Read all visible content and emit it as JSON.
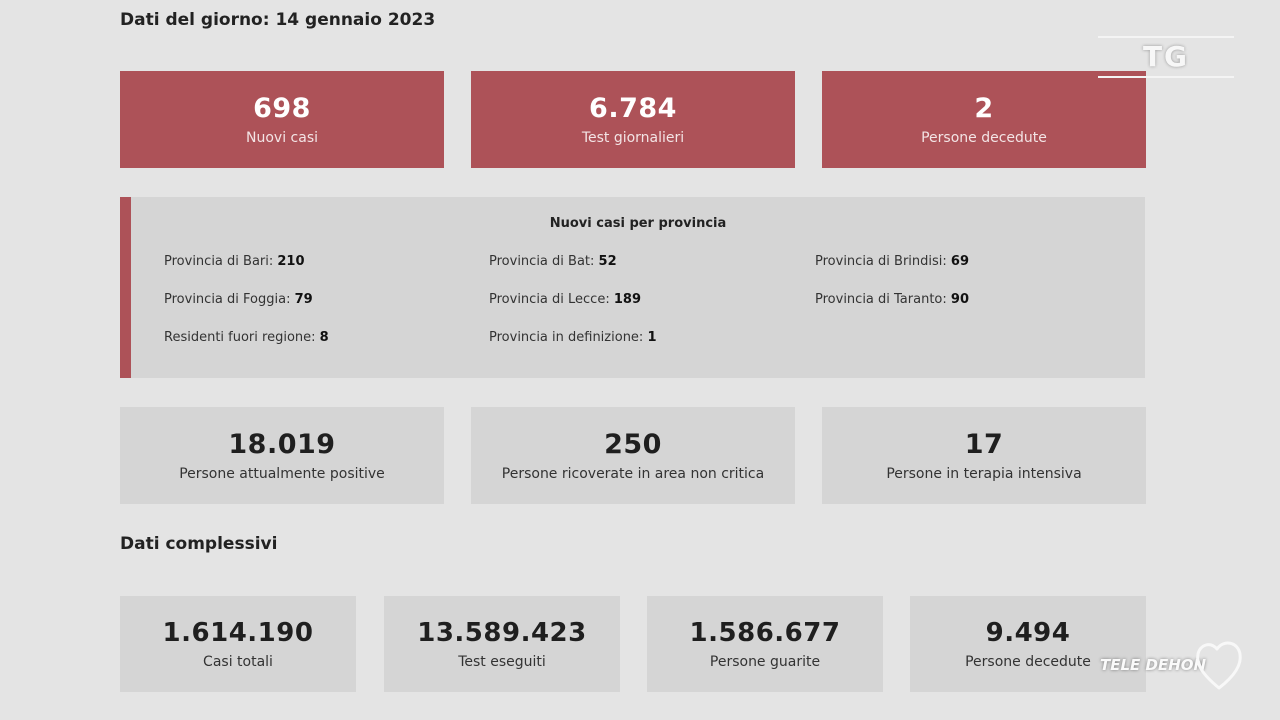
{
  "daily": {
    "heading": "Dati del giorno: 14 gennaio 2023",
    "cards": [
      {
        "value": "698",
        "label": "Nuovi casi"
      },
      {
        "value": "6.784",
        "label": "Test giornalieri"
      },
      {
        "value": "2",
        "label": "Persone decedute"
      }
    ]
  },
  "provinces": {
    "title": "Nuovi casi per provincia",
    "items": [
      {
        "label": "Provincia di Bari:",
        "value": "210"
      },
      {
        "label": "Provincia di Bat:",
        "value": "52"
      },
      {
        "label": "Provincia di Brindisi:",
        "value": "69"
      },
      {
        "label": "Provincia di Foggia:",
        "value": "79"
      },
      {
        "label": "Provincia di Lecce:",
        "value": "189"
      },
      {
        "label": "Provincia di Taranto:",
        "value": "90"
      },
      {
        "label": "Residenti fuori regione:",
        "value": "8"
      },
      {
        "label": "Provincia in definizione:",
        "value": "1"
      }
    ]
  },
  "status": {
    "cards": [
      {
        "value": "18.019",
        "label": "Persone attualmente positive"
      },
      {
        "value": "250",
        "label": "Persone ricoverate in area non critica"
      },
      {
        "value": "17",
        "label": "Persone in terapia intensiva"
      }
    ]
  },
  "totals": {
    "heading": "Dati complessivi",
    "cards": [
      {
        "value": "1.614.190",
        "label": "Casi totali"
      },
      {
        "value": "13.589.423",
        "label": "Test eseguiti"
      },
      {
        "value": "1.586.677",
        "label": "Persone guarite"
      },
      {
        "value": "9.494",
        "label": "Persone decedute"
      }
    ]
  },
  "overlay": {
    "tg_logo": "TG",
    "channel_logo": "TELE DEHON",
    "heart_icon": "heart-outline-icon"
  }
}
